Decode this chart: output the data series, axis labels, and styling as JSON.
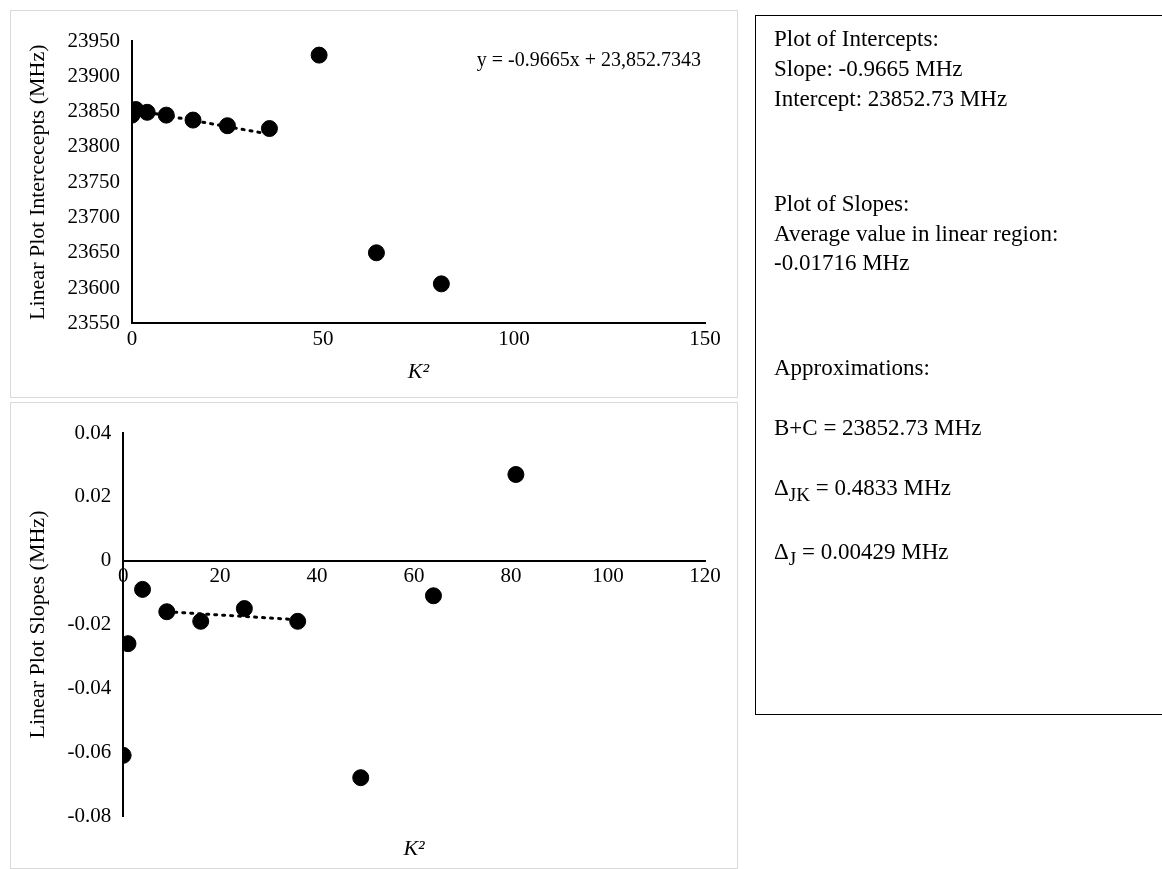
{
  "chart_data": [
    {
      "type": "scatter",
      "ylabel": "Linear Plot Intercecepts (MHz)",
      "xlabel": "K²",
      "xlim": [
        0,
        150
      ],
      "xticks": [
        0,
        50,
        100,
        150
      ],
      "ylim": [
        23550,
        23950
      ],
      "yticks": [
        23550,
        23600,
        23650,
        23700,
        23750,
        23800,
        23850,
        23900,
        23950
      ],
      "grid": false,
      "legend": false,
      "marker": "circle",
      "annotations": [
        "y = -0.9665x + 23,852.7343"
      ],
      "series": [
        {
          "color": "#000000",
          "x": [
            0,
            1,
            4,
            9,
            16,
            25,
            36,
            49,
            64,
            81
          ],
          "values": [
            23845,
            23853,
            23849,
            23845,
            23838,
            23830,
            23826,
            23930,
            23650,
            23606
          ]
        },
        {
          "type": "line",
          "color": "#000000",
          "marker": "none",
          "line_style": "dotted",
          "x": [
            0,
            36
          ],
          "values": [
            23853,
            23818
          ]
        }
      ]
    },
    {
      "type": "scatter",
      "ylabel": "Linear Plot Slopes (MHz)",
      "xlabel": "K²",
      "xlim": [
        0,
        120
      ],
      "xticks": [
        0,
        20,
        40,
        60,
        80,
        100,
        120
      ],
      "ylim": [
        -0.08,
        0.04
      ],
      "yticks": [
        -0.08,
        -0.06,
        -0.04,
        -0.02,
        0,
        0.02,
        0.04
      ],
      "grid": false,
      "legend": false,
      "marker": "circle",
      "series": [
        {
          "color": "#000000",
          "x": [
            0,
            1,
            4,
            9,
            16,
            25,
            36,
            49,
            64,
            81
          ],
          "values": [
            -0.061,
            -0.026,
            -0.009,
            -0.016,
            -0.019,
            -0.015,
            -0.019,
            -0.068,
            -0.011,
            0.027
          ]
        },
        {
          "type": "line",
          "color": "#000000",
          "marker": "none",
          "line_style": "dotted",
          "x": [
            9,
            36
          ],
          "values": [
            -0.016,
            -0.0185
          ]
        }
      ]
    },
    {
      "type": "other",
      "annotations": [
        "Plot of Intercepts:\nSlope: -0.9665 MHz\nIntercept: 23852.73 MHz",
        "Plot of Slopes:\nAverage value in linear region:\n-0.01716 MHz",
        "Approximations:\n\nB+C = 23852.73 MHz\n\nΔ$_{JK}$ = 0.4833 MHz\n\nΔ$_{J}$ = 0.00429 MHz"
      ]
    }
  ]
}
